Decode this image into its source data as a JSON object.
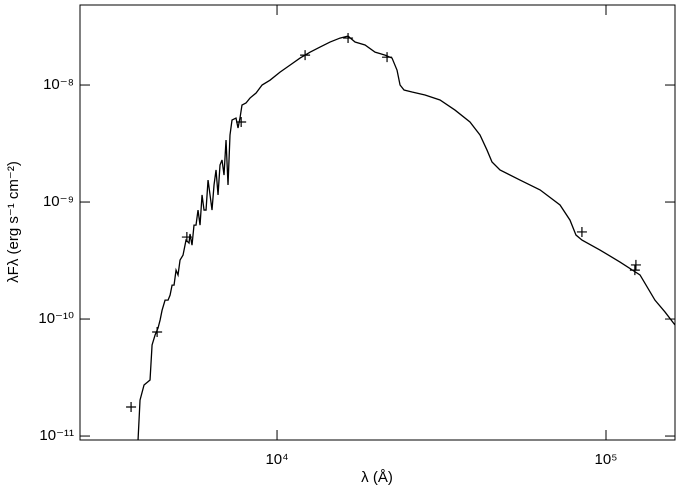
{
  "chart_data": {
    "type": "line",
    "xlabel": "λ (Å)",
    "ylabel": "λFλ (erg s⁻¹ cm⁻²)",
    "xscale": "log",
    "yscale": "log",
    "xlim": [
      2518,
      162100
    ],
    "ylim": [
      9.25e-12,
      4.83e-08
    ],
    "xticks": [
      {
        "value": 10000,
        "label": "10⁴"
      },
      {
        "value": 100000,
        "label": "10⁵"
      }
    ],
    "yticks": [
      {
        "value": 1e-11,
        "label": "10⁻¹¹"
      },
      {
        "value": 1e-10,
        "label": "10⁻¹⁰"
      },
      {
        "value": 1e-09,
        "label": "10⁻⁹"
      },
      {
        "value": 1e-08,
        "label": "10⁻⁸"
      }
    ],
    "series": [
      {
        "style": "line",
        "color": "#000000",
        "x": [
          3780,
          3833,
          3942,
          4111,
          4170,
          4259,
          4349,
          4411,
          4473,
          4567,
          4664,
          4730,
          4797,
          4864,
          4932,
          5001,
          5072,
          5179,
          5289,
          5401,
          5439,
          5515,
          5593,
          5672,
          5752,
          5834,
          5916,
          5999,
          6084,
          6170,
          6257,
          6344,
          6434,
          6525,
          6617,
          6709,
          6804,
          6900,
          6998,
          7096,
          7195,
          7297,
          7505,
          7611,
          7716,
          7825,
          8048,
          8276,
          8636,
          9006,
          9522,
          10212,
          10952,
          11747,
          12598,
          13511,
          14490,
          15541,
          16440,
          17264,
          18516,
          19859,
          21299,
          22366,
          23163,
          23658,
          24327,
          25727,
          28178,
          31291,
          34753,
          38595,
          41400,
          43481,
          45030,
          47622,
          54790,
          63030,
          72490,
          77720,
          81060,
          84550,
          95900,
          110300,
          126900,
          140900,
          151100,
          162100
        ],
        "values": [
          9.25e-12,
          2.03e-11,
          2.73e-11,
          3.01e-11,
          6e-11,
          7.3e-11,
          8.4e-11,
          9.8e-11,
          1.19e-10,
          1.45e-10,
          1.45e-10,
          1.6e-10,
          1.95e-10,
          1.95e-10,
          2.62e-10,
          2.38e-10,
          3.19e-10,
          3.52e-10,
          4.73e-10,
          4.46e-10,
          5.33e-10,
          4.28e-10,
          6.35e-10,
          6.35e-10,
          8.54e-10,
          6.35e-10,
          1.15e-09,
          8.54e-10,
          8.54e-10,
          1.54e-09,
          1.15e-09,
          8.54e-10,
          1.4e-09,
          1.88e-09,
          1.15e-09,
          2.07e-09,
          2.29e-09,
          1.7e-09,
          3.39e-09,
          1.4e-09,
          3.74e-09,
          5.02e-09,
          5.22e-09,
          4.29e-09,
          5.22e-09,
          6.75e-09,
          7.02e-09,
          7.74e-09,
          8.55e-09,
          1e-08,
          1.1e-08,
          1.29e-08,
          1.48e-08,
          1.7e-08,
          1.91e-08,
          2.11e-08,
          2.33e-08,
          2.52e-08,
          2.62e-08,
          2.33e-08,
          2.2e-08,
          1.91e-08,
          1.8e-08,
          1.7e-08,
          1.34e-08,
          1e-08,
          9.06e-09,
          8.71e-09,
          8.22e-09,
          7.45e-09,
          6.11e-09,
          4.83e-09,
          3.74e-09,
          2.78e-09,
          2.2e-09,
          1.88e-09,
          1.54e-09,
          1.27e-09,
          9.43e-10,
          7.01e-10,
          5.22e-10,
          4.73e-10,
          3.89e-10,
          3.07e-10,
          2.38e-10,
          1.45e-10,
          1.15e-10,
          8.9e-11
        ]
      },
      {
        "style": "marker",
        "marker": "+",
        "color": "#000000",
        "x": [
          3600,
          4320,
          5320,
          7780,
          12170,
          16440,
          21600,
          84500,
          123300,
          122400
        ],
        "values": [
          1.77e-11,
          7.75e-11,
          5.02e-10,
          4.83e-09,
          1.8e-08,
          2.52e-08,
          1.73e-08,
          5.55e-10,
          2.9e-10,
          2.62e-10
        ]
      }
    ]
  }
}
